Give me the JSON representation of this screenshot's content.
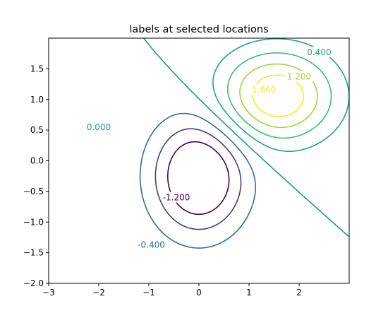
{
  "chart_data": {
    "type": "contour",
    "title": "labels at selected locations",
    "xlabel": "",
    "ylabel": "",
    "xlim": [
      -3.0,
      3.0
    ],
    "ylim": [
      -2.0,
      2.0
    ],
    "x_ticks": [
      -3,
      -2,
      -1,
      0,
      1,
      2
    ],
    "x_tick_labels": [
      "−3",
      "−2",
      "−1",
      "0",
      "1",
      "2"
    ],
    "y_ticks": [
      -2.0,
      -1.5,
      -1.0,
      -0.5,
      0.0,
      0.5,
      1.0,
      1.5
    ],
    "y_tick_labels": [
      "−2.0",
      "−1.5",
      "−1.0",
      "−0.5",
      "0.0",
      "0.5",
      "1.0",
      "1.5"
    ],
    "colormap": "viridis",
    "grid": false,
    "levels": [
      {
        "value": -1.2,
        "color": "#440154"
      },
      {
        "value": -0.8,
        "color": "#433d84"
      },
      {
        "value": -0.4,
        "color": "#2d6f8e"
      },
      {
        "value": 0.0,
        "color": "#1f9a8a"
      },
      {
        "value": 0.4,
        "color": "#1fa287"
      },
      {
        "value": 0.8,
        "color": "#3fbc73"
      },
      {
        "value": 1.2,
        "color": "#9fd938"
      },
      {
        "value": 1.6,
        "color": "#fde725"
      }
    ],
    "contour_labels": [
      {
        "text": "0.400",
        "x": 2.4,
        "y": 1.77,
        "color": "#1fa287"
      },
      {
        "text": "1.200",
        "x": 2.0,
        "y": 1.37,
        "color": "#9fd938"
      },
      {
        "text": "1.600",
        "x": 1.3,
        "y": 1.16,
        "color": "#fde725"
      },
      {
        "text": "0.000",
        "x": -2.0,
        "y": 0.55,
        "color": "#1f9a8a"
      },
      {
        "text": "-1.200",
        "x": -0.45,
        "y": -0.6,
        "color": "#440154"
      },
      {
        "text": "-0.400",
        "x": -0.95,
        "y": -1.37,
        "color": "#2d6f8e"
      }
    ]
  }
}
